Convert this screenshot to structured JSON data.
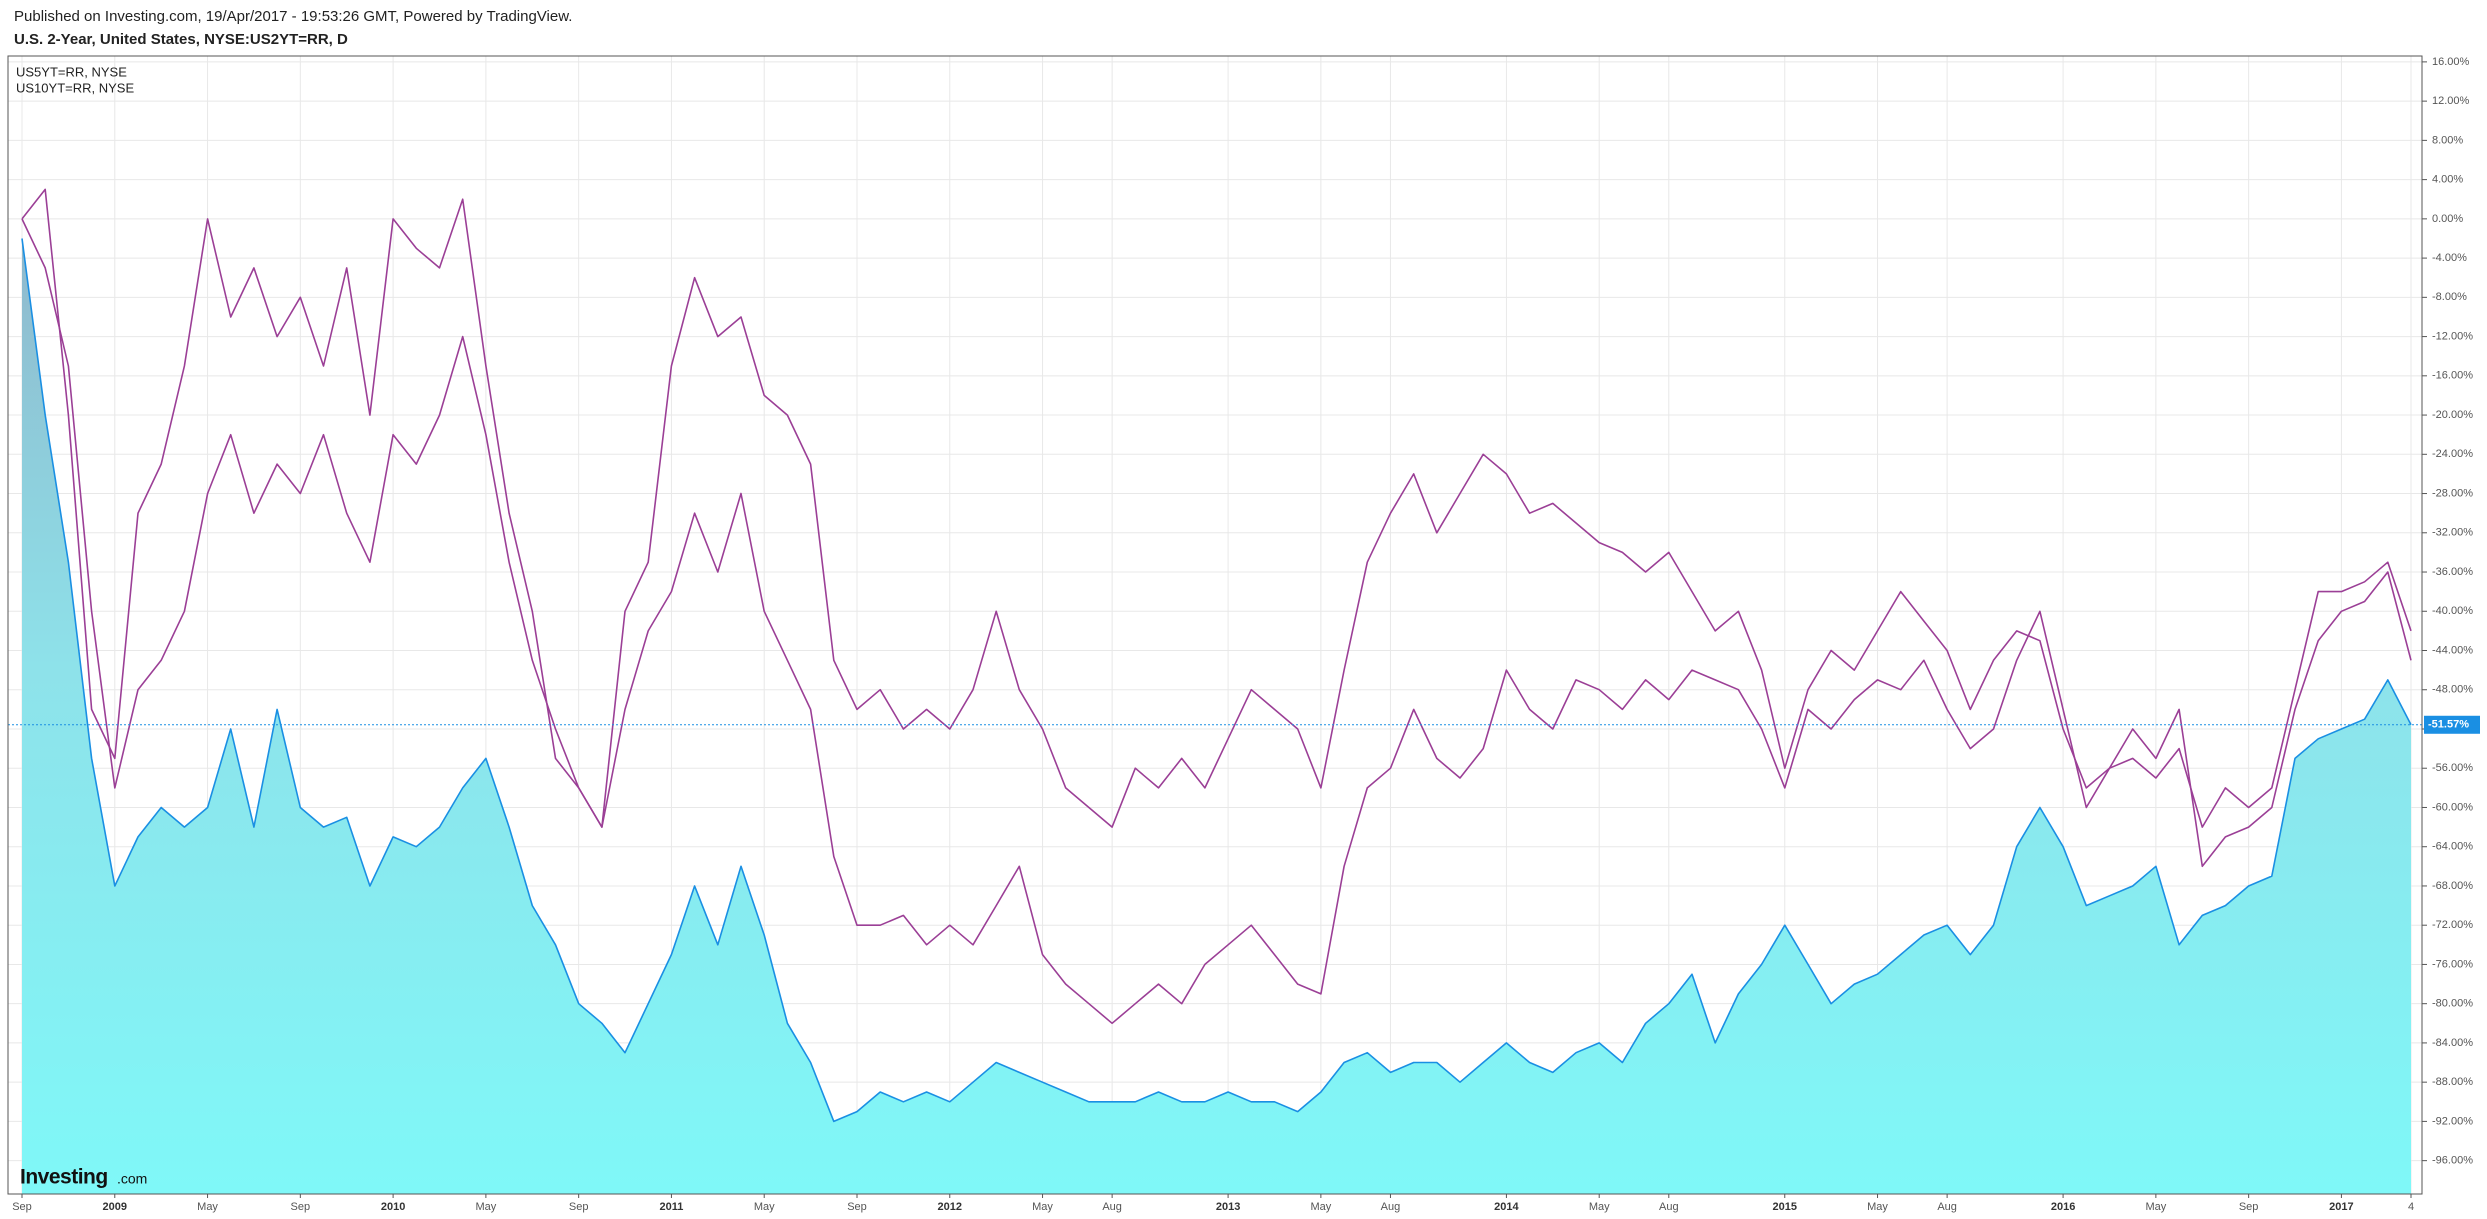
{
  "chart_data": {
    "type": "line",
    "publisher_note": "Published on Investing.com, 19/Apr/2017 - 19:53:26 GMT, Powered by TradingView.",
    "title": "U.S. 2-Year, United States, NYSE:US2YT=RR, D",
    "logo": "Investing",
    "logo_suffix": ".com",
    "categories": [
      "Sep",
      null,
      null,
      null,
      "2009",
      null,
      null,
      null,
      "May",
      null,
      null,
      null,
      "Sep",
      null,
      null,
      null,
      "2010",
      null,
      null,
      null,
      "May",
      null,
      null,
      null,
      "Sep",
      null,
      null,
      null,
      "2011",
      null,
      null,
      null,
      "May",
      null,
      null,
      null,
      "Sep",
      null,
      null,
      null,
      "2012",
      null,
      null,
      null,
      "May",
      null,
      null,
      "Aug",
      null,
      null,
      null,
      null,
      "2013",
      null,
      null,
      null,
      "May",
      null,
      null,
      "Aug",
      null,
      null,
      null,
      null,
      "2014",
      null,
      null,
      null,
      "May",
      null,
      null,
      "Aug",
      null,
      null,
      null,
      null,
      "2015",
      null,
      null,
      null,
      "May",
      null,
      null,
      "Aug",
      null,
      null,
      null,
      null,
      "2016",
      null,
      null,
      null,
      "May",
      null,
      null,
      null,
      "Sep",
      null,
      null,
      null,
      "2017",
      null,
      null,
      "4"
    ],
    "series": [
      {
        "color": "#1a8fe3",
        "area": true,
        "values": [
          -2,
          -20,
          -35,
          -55,
          -68,
          -63,
          -60,
          -62,
          -60,
          -52,
          -62,
          -50,
          -60,
          -62,
          -61,
          -68,
          -63,
          -64,
          -62,
          -58,
          -55,
          -62,
          -70,
          -74,
          -80,
          -82,
          -85,
          -80,
          -75,
          -68,
          -74,
          -66,
          -73,
          -82,
          -86,
          -92,
          -91,
          -89,
          -90,
          -89,
          -90,
          -88,
          -86,
          -87,
          -88,
          -89,
          -90,
          -90,
          -90,
          -89,
          -90,
          -90,
          -89,
          -90,
          -90,
          -91,
          -89,
          -86,
          -85,
          -87,
          -86,
          -86,
          -88,
          -86,
          -84,
          -86,
          -87,
          -85,
          -84,
          -86,
          -82,
          -80,
          -77,
          -84,
          -79,
          -76,
          -72,
          -76,
          -80,
          -78,
          -77,
          -75,
          -73,
          -72,
          -75,
          -72,
          -64,
          -60,
          -64,
          -70,
          -69,
          -68,
          -66,
          -74,
          -71,
          -70,
          -68,
          -67,
          -55,
          -53,
          -52,
          -51,
          -47,
          -51.57
        ]
      },
      {
        "name": "US5YT=RR, NYSE",
        "color": "#9b3f96",
        "values": [
          0,
          3,
          -20,
          -50,
          -55,
          -30,
          -25,
          -15,
          0,
          -10,
          -5,
          -12,
          -8,
          -15,
          -5,
          -20,
          0,
          -3,
          -5,
          2,
          -15,
          -30,
          -40,
          -55,
          -58,
          -62,
          -40,
          -35,
          -15,
          -6,
          -12,
          -10,
          -18,
          -20,
          -25,
          -45,
          -50,
          -48,
          -52,
          -50,
          -52,
          -48,
          -40,
          -48,
          -52,
          -58,
          -60,
          -62,
          -56,
          -58,
          -55,
          -58,
          -53,
          -48,
          -50,
          -52,
          -58,
          -46,
          -35,
          -30,
          -26,
          -32,
          -28,
          -24,
          -26,
          -30,
          -29,
          -31,
          -33,
          -34,
          -36,
          -34,
          -38,
          -42,
          -40,
          -46,
          -56,
          -48,
          -44,
          -46,
          -42,
          -38,
          -41,
          -44,
          -50,
          -45,
          -42,
          -43,
          -52,
          -58,
          -56,
          -55,
          -57,
          -54,
          -62,
          -58,
          -60,
          -58,
          -48,
          -38,
          -38,
          -37,
          -35,
          -42
        ]
      },
      {
        "name": "US10YT=RR, NYSE",
        "color": "#9b3f96",
        "values": [
          0,
          -5,
          -15,
          -40,
          -58,
          -48,
          -45,
          -40,
          -28,
          -22,
          -30,
          -25,
          -28,
          -22,
          -30,
          -35,
          -22,
          -25,
          -20,
          -12,
          -22,
          -35,
          -45,
          -52,
          -58,
          -62,
          -50,
          -42,
          -38,
          -30,
          -36,
          -28,
          -40,
          -45,
          -50,
          -65,
          -72,
          -72,
          -71,
          -74,
          -72,
          -74,
          -70,
          -66,
          -75,
          -78,
          -80,
          -82,
          -80,
          -78,
          -80,
          -76,
          -74,
          -72,
          -75,
          -78,
          -79,
          -66,
          -58,
          -56,
          -50,
          -55,
          -57,
          -54,
          -46,
          -50,
          -52,
          -47,
          -48,
          -50,
          -47,
          -49,
          -46,
          -47,
          -48,
          -52,
          -58,
          -50,
          -52,
          -49,
          -47,
          -48,
          -45,
          -50,
          -54,
          -52,
          -45,
          -40,
          -50,
          -60,
          -56,
          -52,
          -55,
          -50,
          -66,
          -63,
          -62,
          -60,
          -50,
          -43,
          -40,
          -39,
          -36,
          -45
        ]
      }
    ],
    "last_value_label": {
      "value": -51.57,
      "label": "-51.57%"
    },
    "ylim": [
      -99.4,
      16.6
    ],
    "yticks": [
      {
        "value": 16,
        "label": "16.00%"
      },
      {
        "value": 12,
        "label": "12.00%"
      },
      {
        "value": 8,
        "label": "8.00%"
      },
      {
        "value": 4,
        "label": "4.00%"
      },
      {
        "value": 0,
        "label": "0.00%"
      },
      {
        "value": -4,
        "label": "-4.00%"
      },
      {
        "value": -8,
        "label": "-8.00%"
      },
      {
        "value": -12,
        "label": "-12.00%"
      },
      {
        "value": -16,
        "label": "-16.00%"
      },
      {
        "value": -20,
        "label": "-20.00%"
      },
      {
        "value": -24,
        "label": "-24.00%"
      },
      {
        "value": -28,
        "label": "-28.00%"
      },
      {
        "value": -32,
        "label": "-32.00%"
      },
      {
        "value": -36,
        "label": "-36.00%"
      },
      {
        "value": -40,
        "label": "-40.00%"
      },
      {
        "value": -44,
        "label": "-44.00%"
      },
      {
        "value": -48,
        "label": "-48.00%"
      },
      {
        "value": -52,
        "label": "-52.00%"
      },
      {
        "value": -56,
        "label": "-56.00%"
      },
      {
        "value": -60,
        "label": "-60.00%"
      },
      {
        "value": -64,
        "label": "-64.00%"
      },
      {
        "value": -68,
        "label": "-68.00%"
      },
      {
        "value": -72,
        "label": "-72.00%"
      },
      {
        "value": -76,
        "label": "-76.00%"
      },
      {
        "value": -80,
        "label": "-80.00%"
      },
      {
        "value": -84,
        "label": "-84.00%"
      },
      {
        "value": -88,
        "label": "-88.00%"
      },
      {
        "value": -92,
        "label": "-92.00%"
      },
      {
        "value": -96,
        "label": "-96.00%"
      }
    ],
    "grid": true
  }
}
